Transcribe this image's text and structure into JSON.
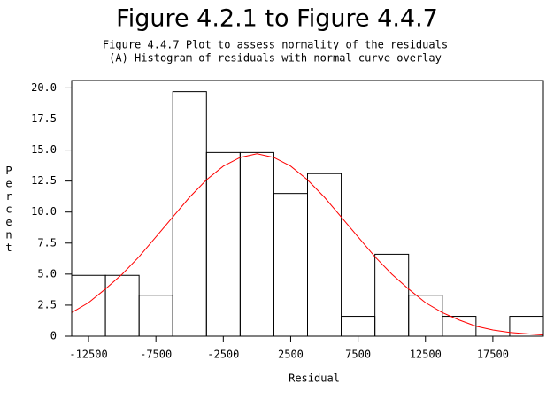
{
  "chart_data": {
    "type": "histogram",
    "title": "Figure 4.2.1 to Figure 4.4.7",
    "subtitle": [
      "Figure 4.4.7 Plot to assess normality of the residuals",
      "(A) Histogram of residuals with normal curve overlay"
    ],
    "xlabel": "Residual",
    "ylabel": "Percent",
    "bins": [
      -13750,
      -11250,
      -8750,
      -6250,
      -3750,
      -1250,
      1250,
      3750,
      6250,
      8750,
      11250,
      13750,
      16250,
      18750,
      21250
    ],
    "values": [
      4.9,
      4.9,
      3.3,
      19.7,
      14.8,
      14.8,
      11.5,
      13.1,
      1.6,
      6.6,
      3.3,
      1.6,
      0,
      1.6
    ],
    "color": "#000000",
    "curve": {
      "color": "#ff0000",
      "x": [
        -13750,
        -12500,
        -11250,
        -10000,
        -8750,
        -7500,
        -6250,
        -5000,
        -3750,
        -2500,
        -1250,
        0,
        1250,
        2500,
        3750,
        5000,
        6250,
        7500,
        8750,
        10000,
        11250,
        12500,
        13750,
        15000,
        16250,
        17500,
        18750,
        20000,
        21250
      ],
      "values": [
        1.9,
        2.7,
        3.8,
        5.0,
        6.4,
        8.0,
        9.6,
        11.2,
        12.6,
        13.7,
        14.4,
        14.7,
        14.4,
        13.7,
        12.6,
        11.2,
        9.6,
        8.0,
        6.4,
        5.0,
        3.8,
        2.7,
        1.9,
        1.3,
        0.8,
        0.5,
        0.3,
        0.2,
        0.1
      ]
    },
    "xlim": [
      -13750,
      21250
    ],
    "xticks": [
      -12500,
      -7500,
      -2500,
      2500,
      7500,
      12500,
      17500
    ],
    "ylim": [
      0,
      20.6
    ],
    "yticks": [
      0,
      2.5,
      {
        "value": 5,
        "label": "5.0"
      },
      7.5,
      {
        "value": 10,
        "label": "10.0"
      },
      12.5,
      {
        "value": 15,
        "label": "15.0"
      },
      17.5,
      {
        "value": 20,
        "label": "20.0"
      }
    ]
  }
}
